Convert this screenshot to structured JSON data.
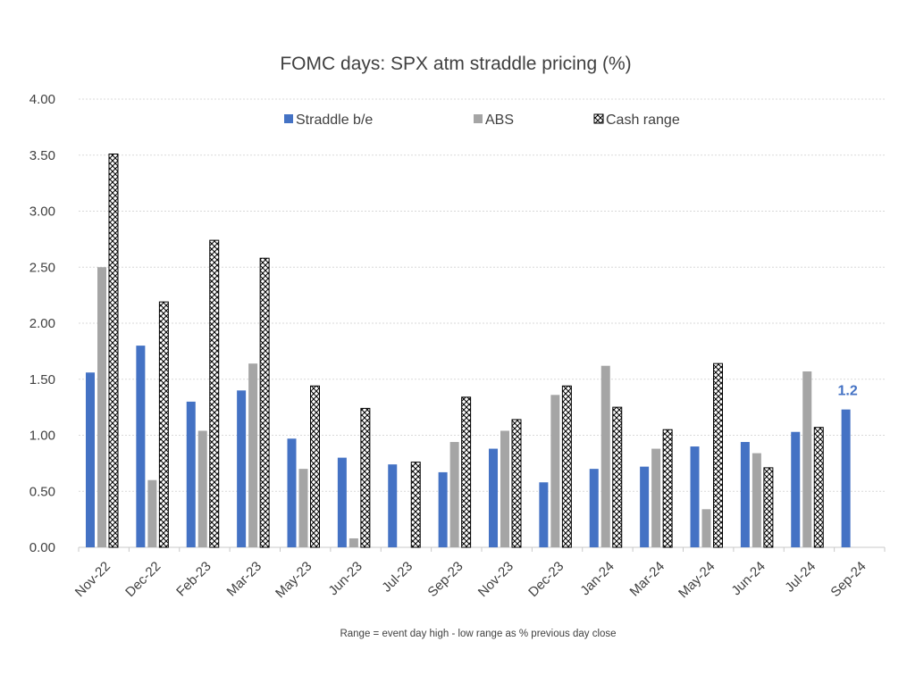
{
  "chart_data": {
    "type": "bar",
    "title": "FOMC days: SPX atm straddle pricing (%)",
    "footnote": "Range = event  day high - low range  as % previous day close",
    "xlabel": "",
    "ylabel": "",
    "ylim": [
      0,
      4
    ],
    "y_ticks": [
      "0.00",
      "0.50",
      "1.00",
      "1.50",
      "2.00",
      "2.50",
      "3.00",
      "3.50",
      "4.00"
    ],
    "y_tick_values": [
      0,
      0.5,
      1,
      1.5,
      2,
      2.5,
      3,
      3.5,
      4
    ],
    "grid": true,
    "legend_position": "top",
    "categories": [
      "Nov-22",
      "Dec-22",
      "Feb-23",
      "Mar-23",
      "May-23",
      "Jun-23",
      "Jul-23",
      "Sep-23",
      "Nov-23",
      "Dec-23",
      "Jan-24",
      "Mar-24",
      "May-24",
      "Jun-24",
      "Jul-24",
      "Sep-24"
    ],
    "series": [
      {
        "name": "Straddle b/e",
        "color": "#4472C4",
        "pattern": "solid",
        "values": [
          1.56,
          1.8,
          1.3,
          1.4,
          0.97,
          0.8,
          0.74,
          0.67,
          0.88,
          0.58,
          0.7,
          0.72,
          0.9,
          0.94,
          1.03,
          1.23
        ]
      },
      {
        "name": "ABS",
        "color": "#A5A5A5",
        "pattern": "solid",
        "values": [
          2.5,
          0.6,
          1.04,
          1.64,
          0.7,
          0.08,
          null,
          0.94,
          1.04,
          1.36,
          1.62,
          0.88,
          0.34,
          0.84,
          1.57,
          null
        ]
      },
      {
        "name": "Cash range",
        "color": "#000000",
        "pattern": "crosshatch",
        "values": [
          3.51,
          2.19,
          2.74,
          2.58,
          1.44,
          1.24,
          0.76,
          1.34,
          1.14,
          1.44,
          1.25,
          1.05,
          1.64,
          0.71,
          1.07,
          null
        ]
      }
    ],
    "annotations": [
      {
        "text": "1.2",
        "category": "Sep-24",
        "series": "Straddle b/e",
        "color": "#4472C4"
      }
    ]
  }
}
